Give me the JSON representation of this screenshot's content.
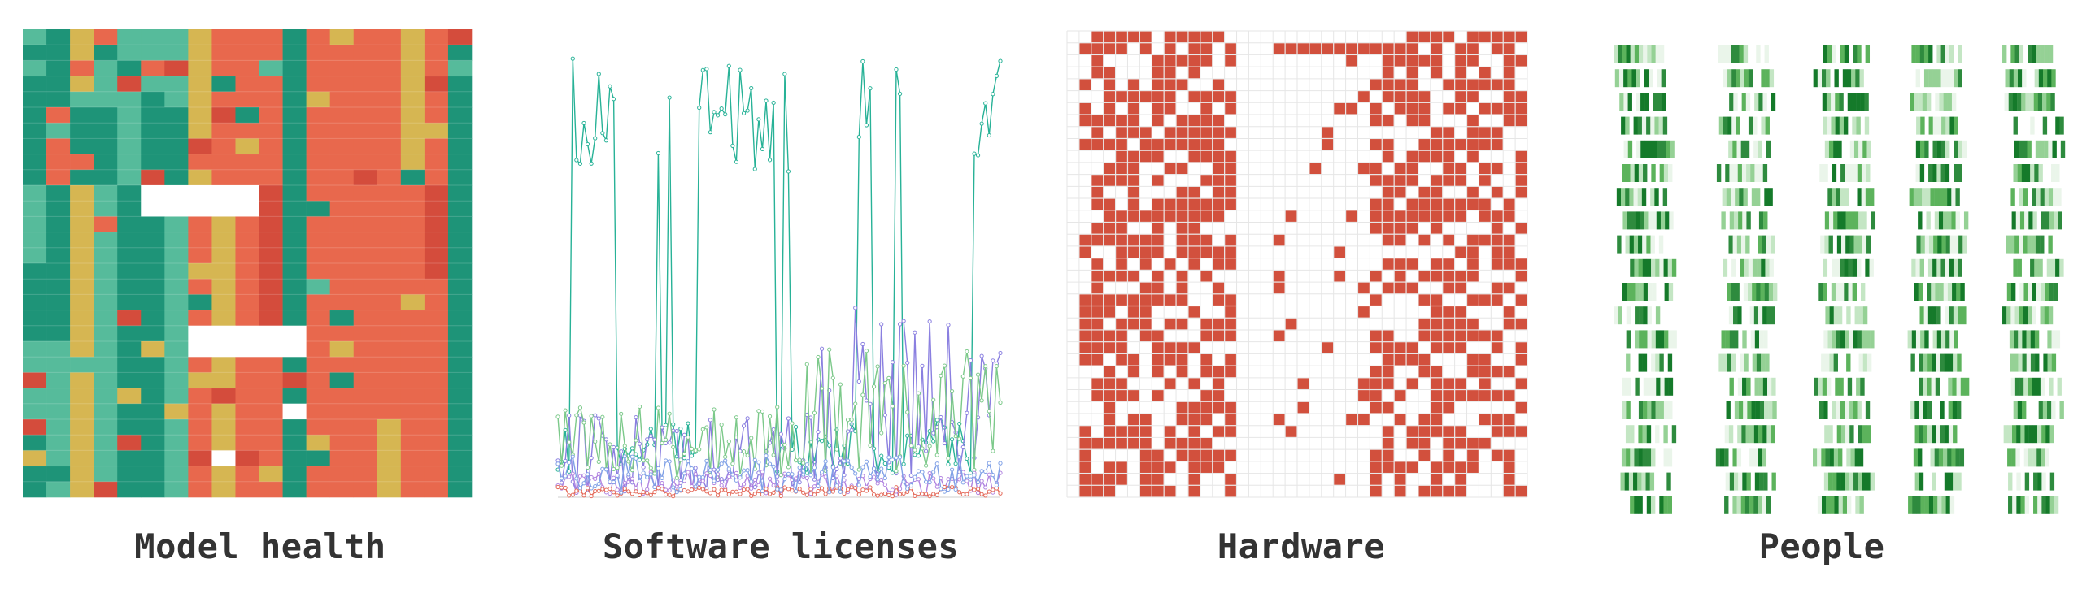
{
  "colors": {
    "model_health": [
      "#1e9478",
      "#56bb9b",
      "#d6b652",
      "#e8684d",
      "#d44c3c"
    ],
    "software_series": [
      "#28b297",
      "#8a7fe0",
      "#7cc98a",
      "#b083e0",
      "#e46a5a",
      "#7fa0e6"
    ],
    "hardware_cell": "#d2503d",
    "hardware_grid": "#e6e6e6",
    "people_shades": [
      "#eaf5ea",
      "#c4e6c4",
      "#95d195",
      "#5cb35c",
      "#2e8b3e",
      "#157a2a"
    ]
  },
  "chart_data": [
    {
      "type": "heatmap",
      "title": "Model health",
      "rows": 30,
      "columns": 25,
      "levels": 5,
      "column_bands": [
        [
          0,
          0,
          2,
          1,
          1,
          1,
          1,
          2,
          3,
          3,
          3,
          0,
          3,
          3,
          3,
          3,
          2,
          3,
          0
        ],
        [
          0,
          3,
          0,
          0,
          1,
          0,
          0,
          2,
          3,
          3,
          3,
          0,
          3,
          3,
          3,
          3,
          2,
          3,
          0
        ],
        [
          1,
          0,
          2,
          1,
          0,
          0,
          1,
          3,
          2,
          3,
          4,
          0,
          3,
          3,
          3,
          3,
          3,
          4,
          0
        ],
        [
          0,
          0,
          2,
          1,
          0,
          0,
          1,
          3,
          2,
          3,
          4,
          0,
          3,
          3,
          3,
          3,
          3,
          3,
          0
        ],
        [
          1,
          1,
          2,
          1,
          0,
          0,
          1,
          3,
          2,
          3,
          3,
          0,
          3,
          3,
          3,
          3,
          3,
          3,
          0
        ],
        [
          0,
          1,
          2,
          1,
          0,
          0,
          1,
          3,
          2,
          3,
          3,
          0,
          3,
          3,
          3,
          2,
          3,
          3,
          0
        ]
      ]
    },
    {
      "type": "line",
      "title": "Software licenses",
      "series_count": 6,
      "points_per_series": 120,
      "x_range": [
        0,
        119
      ],
      "y_range": [
        0,
        1
      ]
    },
    {
      "type": "heatmap",
      "title": "Hardware",
      "rows": 39,
      "columns": 38,
      "blocks": [
        {
          "col_start": 1,
          "col_end": 13,
          "density": 0.62
        },
        {
          "col_start": 17,
          "col_end": 27,
          "density": 0.08
        },
        {
          "col_start": 25,
          "col_end": 37,
          "density": 0.6
        }
      ]
    },
    {
      "type": "heatmap",
      "title": "People",
      "row_count": 20,
      "column_groups": 5,
      "stripes_per_group": 12
    }
  ]
}
